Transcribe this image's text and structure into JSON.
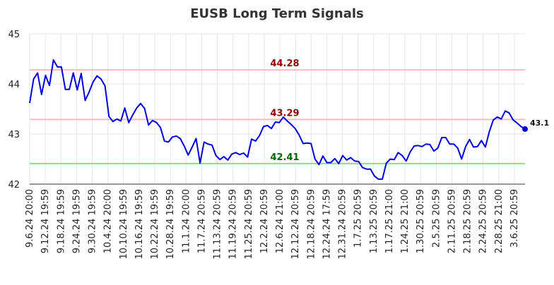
{
  "chart_data": {
    "type": "line",
    "title": "EUSB Long Term Signals",
    "xlabel": "",
    "ylabel": "",
    "ylim": [
      42,
      45
    ],
    "y_ticks": [
      42,
      43,
      44,
      45
    ],
    "x_tick_labels": [
      "9.6.24 20:00",
      "9.12.24 19:59",
      "9.18.24 19:59",
      "9.24.24 19:59",
      "9.30.24 19:59",
      "10.4.24 20:00",
      "10.10.24 19:59",
      "10.16.24 19:59",
      "10.22.24 19:59",
      "10.28.24 19:59",
      "11.1.24 20:00",
      "11.7.24 20:59",
      "11.13.24 20:59",
      "11.19.24 20:59",
      "11.25.24 20:59",
      "12.2.24 20:59",
      "12.6.24 21:00",
      "12.12.24 20:59",
      "12.18.24 20:59",
      "12.24.24 17:59",
      "12.31.24 20:59",
      "1.7.25 20:59",
      "1.13.25 20:59",
      "1.17.25 21:00",
      "1.24.25 21:00",
      "1.30.25 20:59",
      "2.5.25 20:59",
      "2.11.25 20:59",
      "2.18.25 20:59",
      "2.24.25 20:59",
      "2.28.25 21:00",
      "3.6.25 20:59"
    ],
    "grid": true,
    "series": [
      {
        "color": "#0000dd",
        "values": [
          43.62,
          44.1,
          44.22,
          43.79,
          44.17,
          43.97,
          44.48,
          44.34,
          44.34,
          43.89,
          43.89,
          44.22,
          43.88,
          44.21,
          43.67,
          43.84,
          44.04,
          44.16,
          44.1,
          43.96,
          43.35,
          43.25,
          43.3,
          43.26,
          43.52,
          43.23,
          43.38,
          43.52,
          43.61,
          43.51,
          43.18,
          43.27,
          43.23,
          43.13,
          42.86,
          42.84,
          42.94,
          42.96,
          42.91,
          42.76,
          42.58,
          42.74,
          42.91,
          42.42,
          42.84,
          42.8,
          42.78,
          42.57,
          42.49,
          42.55,
          42.48,
          42.6,
          42.63,
          42.59,
          42.62,
          42.54,
          42.9,
          42.86,
          42.97,
          43.15,
          43.17,
          43.11,
          43.24,
          43.23,
          43.34,
          43.26,
          43.19,
          43.11,
          42.98,
          42.81,
          42.82,
          42.81,
          42.5,
          42.39,
          42.56,
          42.43,
          42.43,
          42.51,
          42.41,
          42.57,
          42.48,
          42.53,
          42.46,
          42.45,
          42.33,
          42.3,
          42.3,
          42.16,
          42.1,
          42.1,
          42.42,
          42.5,
          42.49,
          42.63,
          42.57,
          42.46,
          42.64,
          42.76,
          42.77,
          42.75,
          42.8,
          42.79,
          42.66,
          42.72,
          42.93,
          42.93,
          42.8,
          42.8,
          42.72,
          42.5,
          42.75,
          42.89,
          42.74,
          42.75,
          42.87,
          42.74,
          43.05,
          43.28,
          43.34,
          43.3,
          43.46,
          43.42,
          43.28,
          43.22,
          43.15,
          43.1
        ]
      }
    ],
    "hlines": [
      {
        "value": 44.28,
        "label": "44.28",
        "line_color": "#ffbbbb",
        "text_color": "#8b0000"
      },
      {
        "value": 43.29,
        "label": "43.29",
        "line_color": "#ffbbbb",
        "text_color": "#8b0000"
      },
      {
        "value": 42.41,
        "label": "42.41",
        "line_color": "#88e088",
        "text_color": "#006400"
      }
    ],
    "last_value": {
      "label": "43.1",
      "value": 43.1
    }
  }
}
